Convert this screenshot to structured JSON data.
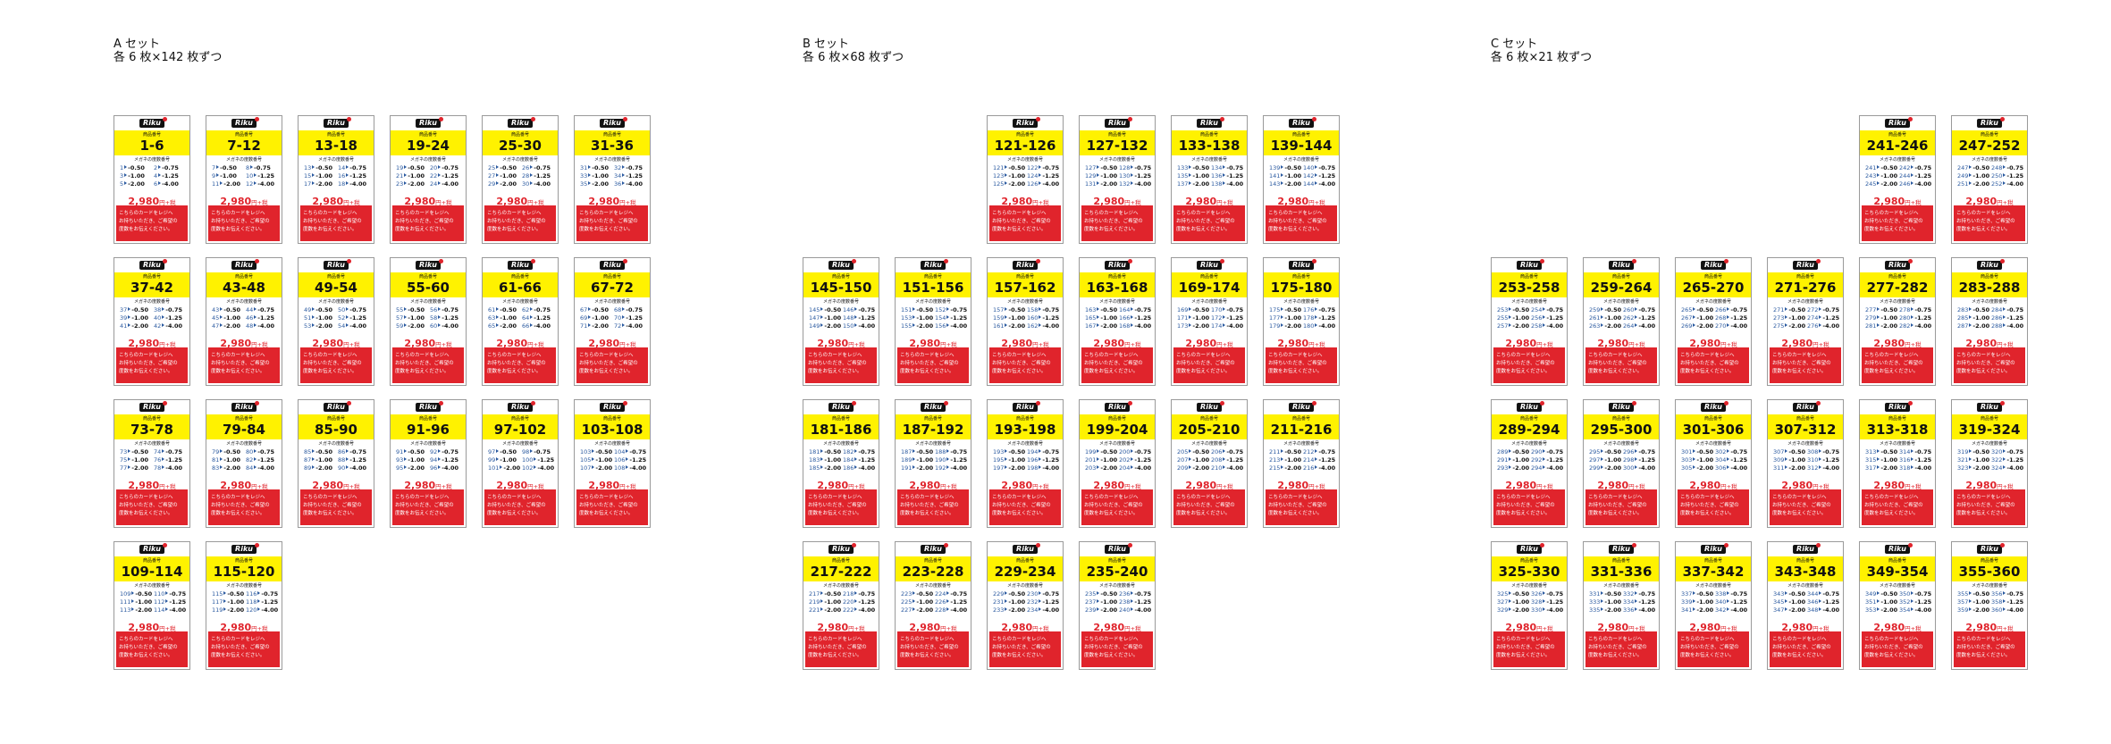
{
  "card_common": {
    "logo": "Riku",
    "product_label": "商品番号",
    "power_label": "メガネの度数番号",
    "powers": [
      "-0.50",
      "-0.75",
      "-1.00",
      "-1.25",
      "-2.00",
      "-4.00"
    ],
    "price": "2,980",
    "price_unit": "円+税",
    "notice": [
      "こちらのカードをレジへ",
      "お持ちいただき、ご希望の",
      "度数をお伝えください。"
    ]
  },
  "sets": [
    {
      "title": "A セット",
      "subtitle": "各 6 枚×142 枚ずつ",
      "cards": [
        {
          "range": "1-6",
          "numbers": [
            1,
            2,
            3,
            4,
            5,
            6
          ]
        },
        {
          "range": "7-12",
          "numbers": [
            7,
            8,
            9,
            10,
            11,
            12
          ]
        },
        {
          "range": "13-18",
          "numbers": [
            13,
            14,
            15,
            16,
            17,
            18
          ]
        },
        {
          "range": "19-24",
          "numbers": [
            19,
            20,
            21,
            22,
            23,
            24
          ]
        },
        {
          "range": "25-30",
          "numbers": [
            25,
            26,
            27,
            28,
            29,
            30
          ]
        },
        {
          "range": "31-36",
          "numbers": [
            31,
            32,
            33,
            34,
            35,
            36
          ]
        },
        {
          "range": "37-42",
          "numbers": [
            37,
            38,
            39,
            40,
            41,
            42
          ]
        },
        {
          "range": "43-48",
          "numbers": [
            43,
            44,
            45,
            46,
            47,
            48
          ]
        },
        {
          "range": "49-54",
          "numbers": [
            49,
            50,
            51,
            52,
            53,
            54
          ]
        },
        {
          "range": "55-60",
          "numbers": [
            55,
            56,
            57,
            58,
            59,
            60
          ]
        },
        {
          "range": "61-66",
          "numbers": [
            61,
            62,
            63,
            64,
            65,
            66
          ]
        },
        {
          "range": "67-72",
          "numbers": [
            67,
            68,
            69,
            70,
            71,
            72
          ]
        },
        {
          "range": "73-78",
          "numbers": [
            73,
            74,
            75,
            76,
            77,
            78
          ]
        },
        {
          "range": "79-84",
          "numbers": [
            79,
            80,
            81,
            82,
            83,
            84
          ]
        },
        {
          "range": "85-90",
          "numbers": [
            85,
            86,
            87,
            88,
            89,
            90
          ]
        },
        {
          "range": "91-96",
          "numbers": [
            91,
            92,
            93,
            94,
            95,
            96
          ]
        },
        {
          "range": "97-102",
          "numbers": [
            97,
            98,
            99,
            100,
            101,
            102
          ]
        },
        {
          "range": "103-108",
          "numbers": [
            103,
            104,
            105,
            106,
            107,
            108
          ]
        },
        {
          "range": "109-114",
          "numbers": [
            109,
            110,
            111,
            112,
            113,
            114
          ]
        },
        {
          "range": "115-120",
          "numbers": [
            115,
            116,
            117,
            118,
            119,
            120
          ]
        }
      ]
    },
    {
      "title": "B セット",
      "subtitle": "各 6 枚×68 枚ずつ",
      "cards": [
        {
          "range": "121-126",
          "numbers": [
            121,
            122,
            123,
            124,
            125,
            126
          ]
        },
        {
          "range": "127-132",
          "numbers": [
            127,
            128,
            129,
            130,
            131,
            132
          ]
        },
        {
          "range": "133-138",
          "numbers": [
            133,
            134,
            135,
            136,
            137,
            138
          ]
        },
        {
          "range": "139-144",
          "numbers": [
            139,
            140,
            141,
            142,
            143,
            144
          ]
        },
        {
          "range": "145-150",
          "numbers": [
            145,
            146,
            147,
            148,
            149,
            150
          ]
        },
        {
          "range": "151-156",
          "numbers": [
            151,
            152,
            153,
            154,
            155,
            156
          ]
        },
        {
          "range": "157-162",
          "numbers": [
            157,
            158,
            159,
            160,
            161,
            162
          ]
        },
        {
          "range": "163-168",
          "numbers": [
            163,
            164,
            165,
            166,
            167,
            168
          ]
        },
        {
          "range": "169-174",
          "numbers": [
            169,
            170,
            171,
            172,
            173,
            174
          ]
        },
        {
          "range": "175-180",
          "numbers": [
            175,
            176,
            177,
            178,
            179,
            180
          ]
        },
        {
          "range": "181-186",
          "numbers": [
            181,
            182,
            183,
            184,
            185,
            186
          ]
        },
        {
          "range": "187-192",
          "numbers": [
            187,
            188,
            189,
            190,
            191,
            192
          ]
        },
        {
          "range": "193-198",
          "numbers": [
            193,
            194,
            195,
            196,
            197,
            198
          ]
        },
        {
          "range": "199-204",
          "numbers": [
            199,
            200,
            201,
            202,
            203,
            204
          ]
        },
        {
          "range": "205-210",
          "numbers": [
            205,
            206,
            207,
            208,
            209,
            210
          ]
        },
        {
          "range": "211-216",
          "numbers": [
            211,
            212,
            213,
            214,
            215,
            216
          ]
        },
        {
          "range": "217-222",
          "numbers": [
            217,
            218,
            219,
            220,
            221,
            222
          ]
        },
        {
          "range": "223-228",
          "numbers": [
            223,
            224,
            225,
            226,
            227,
            228
          ]
        },
        {
          "range": "229-234",
          "numbers": [
            229,
            230,
            231,
            232,
            233,
            234
          ]
        },
        {
          "range": "235-240",
          "numbers": [
            235,
            236,
            237,
            238,
            239,
            240
          ]
        }
      ]
    },
    {
      "title": "C セット",
      "subtitle": "各 6 枚×21 枚ずつ",
      "cards": [
        {
          "range": "241-246",
          "numbers": [
            241,
            242,
            243,
            244,
            245,
            246
          ]
        },
        {
          "range": "247-252",
          "numbers": [
            247,
            248,
            249,
            250,
            251,
            252
          ]
        },
        {
          "range": "253-258",
          "numbers": [
            253,
            254,
            255,
            256,
            257,
            258
          ]
        },
        {
          "range": "259-264",
          "numbers": [
            259,
            260,
            261,
            262,
            263,
            264
          ]
        },
        {
          "range": "265-270",
          "numbers": [
            265,
            266,
            267,
            268,
            269,
            270
          ]
        },
        {
          "range": "271-276",
          "numbers": [
            271,
            272,
            273,
            274,
            275,
            276
          ]
        },
        {
          "range": "277-282",
          "numbers": [
            277,
            278,
            279,
            280,
            281,
            282
          ]
        },
        {
          "range": "283-288",
          "numbers": [
            283,
            284,
            285,
            286,
            287,
            288
          ]
        },
        {
          "range": "289-294",
          "numbers": [
            289,
            290,
            291,
            292,
            293,
            294
          ]
        },
        {
          "range": "295-300",
          "numbers": [
            295,
            296,
            297,
            298,
            299,
            300
          ]
        },
        {
          "range": "301-306",
          "numbers": [
            301,
            302,
            303,
            304,
            305,
            306
          ]
        },
        {
          "range": "307-312",
          "numbers": [
            307,
            308,
            309,
            310,
            311,
            312
          ]
        },
        {
          "range": "313-318",
          "numbers": [
            313,
            314,
            315,
            316,
            317,
            318
          ]
        },
        {
          "range": "319-324",
          "numbers": [
            319,
            320,
            321,
            322,
            323,
            324
          ]
        },
        {
          "range": "325-330",
          "numbers": [
            325,
            326,
            327,
            328,
            329,
            330
          ]
        },
        {
          "range": "331-336",
          "numbers": [
            331,
            332,
            333,
            334,
            335,
            336
          ]
        },
        {
          "range": "337-342",
          "numbers": [
            337,
            338,
            339,
            340,
            341,
            342
          ]
        },
        {
          "range": "343-348",
          "numbers": [
            343,
            344,
            345,
            346,
            347,
            348
          ]
        },
        {
          "range": "349-354",
          "numbers": [
            349,
            350,
            351,
            352,
            353,
            354
          ]
        },
        {
          "range": "355-360",
          "numbers": [
            355,
            356,
            357,
            358,
            359,
            360
          ]
        }
      ]
    }
  ]
}
